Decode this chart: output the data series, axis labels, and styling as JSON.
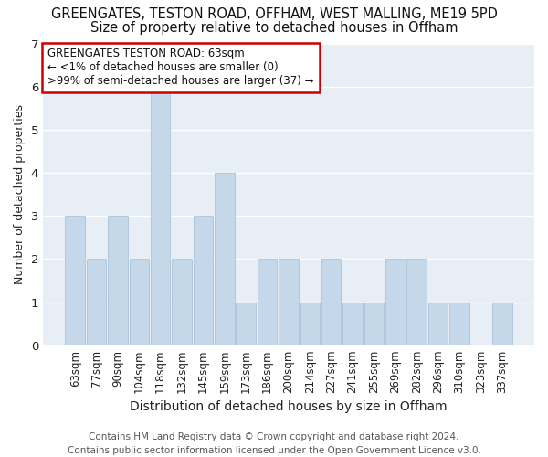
{
  "title1": "GREENGATES, TESTON ROAD, OFFHAM, WEST MALLING, ME19 5PD",
  "title2": "Size of property relative to detached houses in Offham",
  "xlabel": "Distribution of detached houses by size in Offham",
  "ylabel": "Number of detached properties",
  "categories": [
    "63sqm",
    "77sqm",
    "90sqm",
    "104sqm",
    "118sqm",
    "132sqm",
    "145sqm",
    "159sqm",
    "173sqm",
    "186sqm",
    "200sqm",
    "214sqm",
    "227sqm",
    "241sqm",
    "255sqm",
    "269sqm",
    "282sqm",
    "296sqm",
    "310sqm",
    "323sqm",
    "337sqm"
  ],
  "values": [
    3,
    2,
    3,
    2,
    6,
    2,
    3,
    4,
    1,
    2,
    2,
    1,
    2,
    1,
    1,
    2,
    2,
    1,
    1,
    0,
    1
  ],
  "bar_color": "#c5d8ea",
  "bar_edge_color": "#a0bcd4",
  "annotation_title": "GREENGATES TESTON ROAD: 63sqm",
  "annotation_line1": "← <1% of detached houses are smaller (0)",
  "annotation_line2": ">99% of semi-detached houses are larger (37) →",
  "annotation_box_color": "#ffffff",
  "annotation_box_edge": "#cc0000",
  "ylim": [
    0,
    7
  ],
  "yticks": [
    0,
    1,
    2,
    3,
    4,
    5,
    6,
    7
  ],
  "footer1": "Contains HM Land Registry data © Crown copyright and database right 2024.",
  "footer2": "Contains public sector information licensed under the Open Government Licence v3.0.",
  "background_color": "#ffffff",
  "plot_bg_color": "#e8eef5",
  "grid_color": "#ffffff",
  "title1_fontsize": 10.5,
  "title2_fontsize": 10.5,
  "xlabel_fontsize": 10,
  "ylabel_fontsize": 9,
  "tick_fontsize": 8.5,
  "annotation_fontsize": 8.5,
  "footer_fontsize": 7.5
}
